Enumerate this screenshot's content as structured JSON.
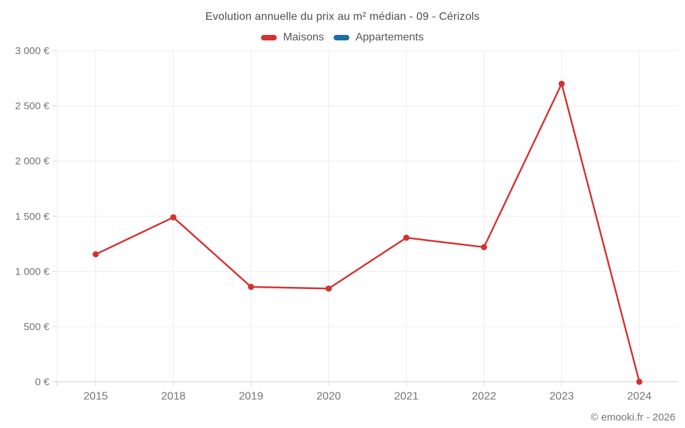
{
  "header": {
    "title": "Evolution annuelle du prix au m² médian - 09 - Cérizols"
  },
  "legend": {
    "items": [
      {
        "label": "Maisons",
        "color": "#d63031"
      },
      {
        "label": "Appartements",
        "color": "#1c6ea4"
      }
    ]
  },
  "footer": {
    "credit": "© emooki.fr - 2026"
  },
  "theme": {
    "title_color": "#4c4c4c",
    "legend_text_color": "#565656",
    "axis_label_color": "#757575",
    "grid_color": "#ececec",
    "axis_line_color": "#d2d2d2",
    "background": "#ffffff"
  },
  "chart_data": {
    "type": "line",
    "title": "Evolution annuelle du prix au m² médian - 09 - Cérizols",
    "categories": [
      "2015",
      "2018",
      "2019",
      "2020",
      "2021",
      "2022",
      "2023",
      "2024"
    ],
    "series": [
      {
        "name": "Maisons",
        "color": "#d63031",
        "values": [
          1155,
          1490,
          860,
          845,
          1305,
          1220,
          2700,
          0
        ]
      },
      {
        "name": "Appartements",
        "color": "#1c6ea4",
        "values": []
      }
    ],
    "xlabel": "",
    "ylabel": "",
    "ylim": [
      0,
      3000
    ],
    "ytick_step": 500,
    "ytick_suffix": " €",
    "grid": true,
    "legend_position": "top",
    "point_radius": 4.5,
    "line_width": 2.5
  }
}
